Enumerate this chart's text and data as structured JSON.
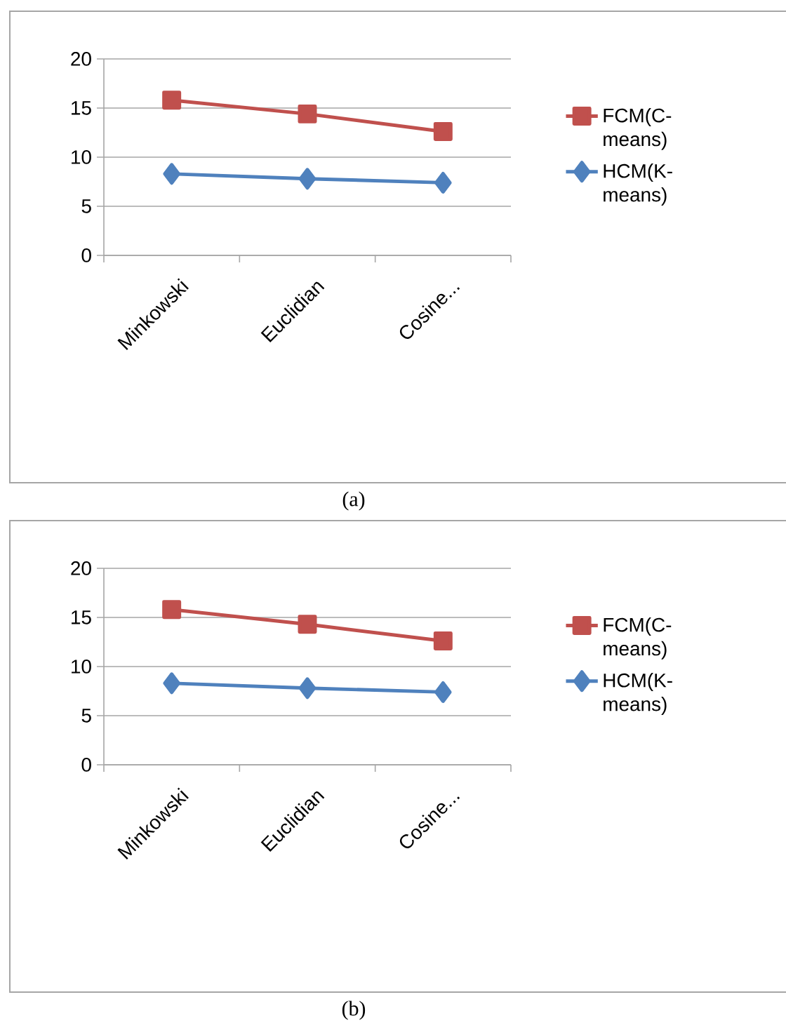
{
  "chart_data": [
    {
      "type": "line",
      "categories": [
        "Minkowski",
        "Euclidian",
        "Cosine..."
      ],
      "ylim": [
        0,
        20
      ],
      "yticks": [
        0,
        5,
        10,
        15,
        20
      ],
      "grid": "y",
      "legend": "right",
      "annotations": [
        "(a)"
      ],
      "series": [
        {
          "name": "FCM(C-means)",
          "color": "#c0504d",
          "marker": "square",
          "values": [
            15.8,
            14.4,
            12.6
          ]
        },
        {
          "name": "HCM(K-means)",
          "color": "#4f81bd",
          "marker": "diamond",
          "values": [
            8.3,
            7.8,
            7.4
          ]
        }
      ]
    },
    {
      "type": "line",
      "categories": [
        "Minkowski",
        "Euclidian",
        "Cosine..."
      ],
      "ylim": [
        0,
        20
      ],
      "yticks": [
        0,
        5,
        10,
        15,
        20
      ],
      "grid": "y",
      "legend": "right",
      "annotations": [
        "(b)"
      ],
      "series": [
        {
          "name": "FCM(C-means)",
          "color": "#c0504d",
          "marker": "square",
          "values": [
            15.8,
            14.3,
            12.6
          ]
        },
        {
          "name": "HCM(K-means)",
          "color": "#4f81bd",
          "marker": "diamond",
          "values": [
            8.3,
            7.8,
            7.4
          ]
        }
      ]
    }
  ]
}
